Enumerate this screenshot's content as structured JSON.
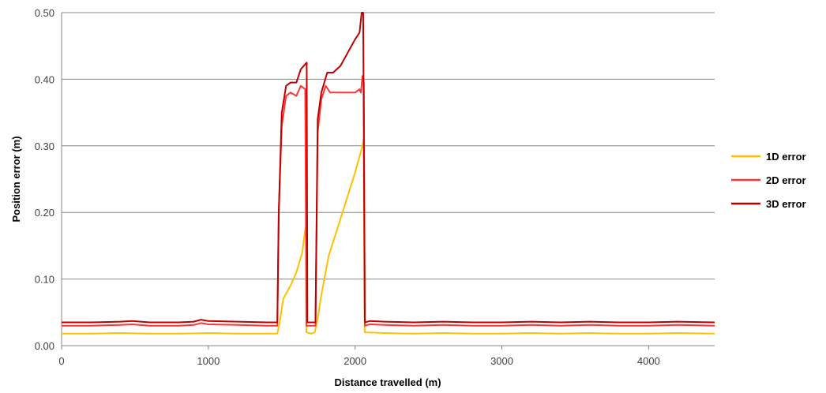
{
  "chart_data": {
    "type": "line",
    "title": "",
    "xlabel": "Distance travelled (m)",
    "ylabel": "Position error (m)",
    "xlim": [
      0,
      4450
    ],
    "ylim": [
      0,
      0.5
    ],
    "x_ticks": [
      "0",
      "1000",
      "2000",
      "3000",
      "4000"
    ],
    "x_tick_values": [
      0,
      1000,
      2000,
      3000,
      4000
    ],
    "y_ticks": [
      "0.00",
      "0.10",
      "0.20",
      "0.30",
      "0.40",
      "0.50"
    ],
    "y_tick_values": [
      0,
      0.1,
      0.2,
      0.3,
      0.4,
      0.5
    ],
    "grid": "horizontal",
    "legend_position": "right",
    "series": [
      {
        "name": "1D error",
        "color": "#ffc000",
        "points": [
          [
            0,
            0.018
          ],
          [
            200,
            0.018
          ],
          [
            400,
            0.019
          ],
          [
            600,
            0.018
          ],
          [
            800,
            0.018
          ],
          [
            1000,
            0.019
          ],
          [
            1200,
            0.018
          ],
          [
            1400,
            0.018
          ],
          [
            1470,
            0.018
          ],
          [
            1490,
            0.04
          ],
          [
            1510,
            0.07
          ],
          [
            1560,
            0.09
          ],
          [
            1600,
            0.11
          ],
          [
            1640,
            0.14
          ],
          [
            1660,
            0.175
          ],
          [
            1665,
            0.18
          ],
          [
            1668,
            0.02
          ],
          [
            1700,
            0.018
          ],
          [
            1725,
            0.02
          ],
          [
            1745,
            0.04
          ],
          [
            1765,
            0.07
          ],
          [
            1790,
            0.1
          ],
          [
            1820,
            0.135
          ],
          [
            1900,
            0.19
          ],
          [
            2000,
            0.26
          ],
          [
            2050,
            0.3
          ],
          [
            2058,
            0.31
          ],
          [
            2065,
            0.02
          ],
          [
            2200,
            0.019
          ],
          [
            2400,
            0.018
          ],
          [
            2600,
            0.019
          ],
          [
            2800,
            0.018
          ],
          [
            3000,
            0.018
          ],
          [
            3200,
            0.019
          ],
          [
            3400,
            0.018
          ],
          [
            3600,
            0.019
          ],
          [
            3800,
            0.018
          ],
          [
            4000,
            0.018
          ],
          [
            4200,
            0.019
          ],
          [
            4450,
            0.018
          ]
        ]
      },
      {
        "name": "2D error",
        "color": "#ff3333",
        "points": [
          [
            0,
            0.03
          ],
          [
            200,
            0.03
          ],
          [
            400,
            0.031
          ],
          [
            480,
            0.032
          ],
          [
            600,
            0.03
          ],
          [
            800,
            0.03
          ],
          [
            900,
            0.031
          ],
          [
            950,
            0.034
          ],
          [
            1000,
            0.032
          ],
          [
            1200,
            0.031
          ],
          [
            1400,
            0.03
          ],
          [
            1470,
            0.03
          ],
          [
            1480,
            0.2
          ],
          [
            1500,
            0.33
          ],
          [
            1530,
            0.375
          ],
          [
            1560,
            0.38
          ],
          [
            1600,
            0.375
          ],
          [
            1630,
            0.39
          ],
          [
            1660,
            0.385
          ],
          [
            1668,
            0.03
          ],
          [
            1700,
            0.03
          ],
          [
            1730,
            0.03
          ],
          [
            1745,
            0.32
          ],
          [
            1770,
            0.37
          ],
          [
            1800,
            0.39
          ],
          [
            1830,
            0.38
          ],
          [
            1900,
            0.38
          ],
          [
            2000,
            0.38
          ],
          [
            2030,
            0.385
          ],
          [
            2040,
            0.38
          ],
          [
            2050,
            0.405
          ],
          [
            2060,
            0.395
          ],
          [
            2066,
            0.03
          ],
          [
            2100,
            0.032
          ],
          [
            2200,
            0.031
          ],
          [
            2400,
            0.03
          ],
          [
            2600,
            0.031
          ],
          [
            2800,
            0.03
          ],
          [
            3000,
            0.03
          ],
          [
            3200,
            0.031
          ],
          [
            3400,
            0.03
          ],
          [
            3600,
            0.031
          ],
          [
            3800,
            0.03
          ],
          [
            4000,
            0.03
          ],
          [
            4200,
            0.031
          ],
          [
            4450,
            0.03
          ]
        ]
      },
      {
        "name": "3D error",
        "color": "#c00000",
        "points": [
          [
            0,
            0.035
          ],
          [
            200,
            0.035
          ],
          [
            400,
            0.036
          ],
          [
            480,
            0.037
          ],
          [
            600,
            0.035
          ],
          [
            800,
            0.035
          ],
          [
            900,
            0.036
          ],
          [
            950,
            0.039
          ],
          [
            1000,
            0.037
          ],
          [
            1200,
            0.036
          ],
          [
            1400,
            0.035
          ],
          [
            1470,
            0.035
          ],
          [
            1480,
            0.2
          ],
          [
            1500,
            0.35
          ],
          [
            1530,
            0.39
          ],
          [
            1560,
            0.395
          ],
          [
            1600,
            0.395
          ],
          [
            1630,
            0.415
          ],
          [
            1670,
            0.425
          ],
          [
            1675,
            0.035
          ],
          [
            1700,
            0.035
          ],
          [
            1730,
            0.035
          ],
          [
            1745,
            0.34
          ],
          [
            1770,
            0.38
          ],
          [
            1810,
            0.41
          ],
          [
            1850,
            0.41
          ],
          [
            1900,
            0.42
          ],
          [
            2000,
            0.46
          ],
          [
            2030,
            0.47
          ],
          [
            2045,
            0.5
          ],
          [
            2055,
            0.5
          ],
          [
            2066,
            0.035
          ],
          [
            2100,
            0.037
          ],
          [
            2200,
            0.036
          ],
          [
            2400,
            0.035
          ],
          [
            2600,
            0.036
          ],
          [
            2800,
            0.035
          ],
          [
            3000,
            0.035
          ],
          [
            3200,
            0.036
          ],
          [
            3400,
            0.035
          ],
          [
            3600,
            0.036
          ],
          [
            3800,
            0.035
          ],
          [
            4000,
            0.035
          ],
          [
            4200,
            0.036
          ],
          [
            4450,
            0.035
          ]
        ]
      }
    ]
  }
}
